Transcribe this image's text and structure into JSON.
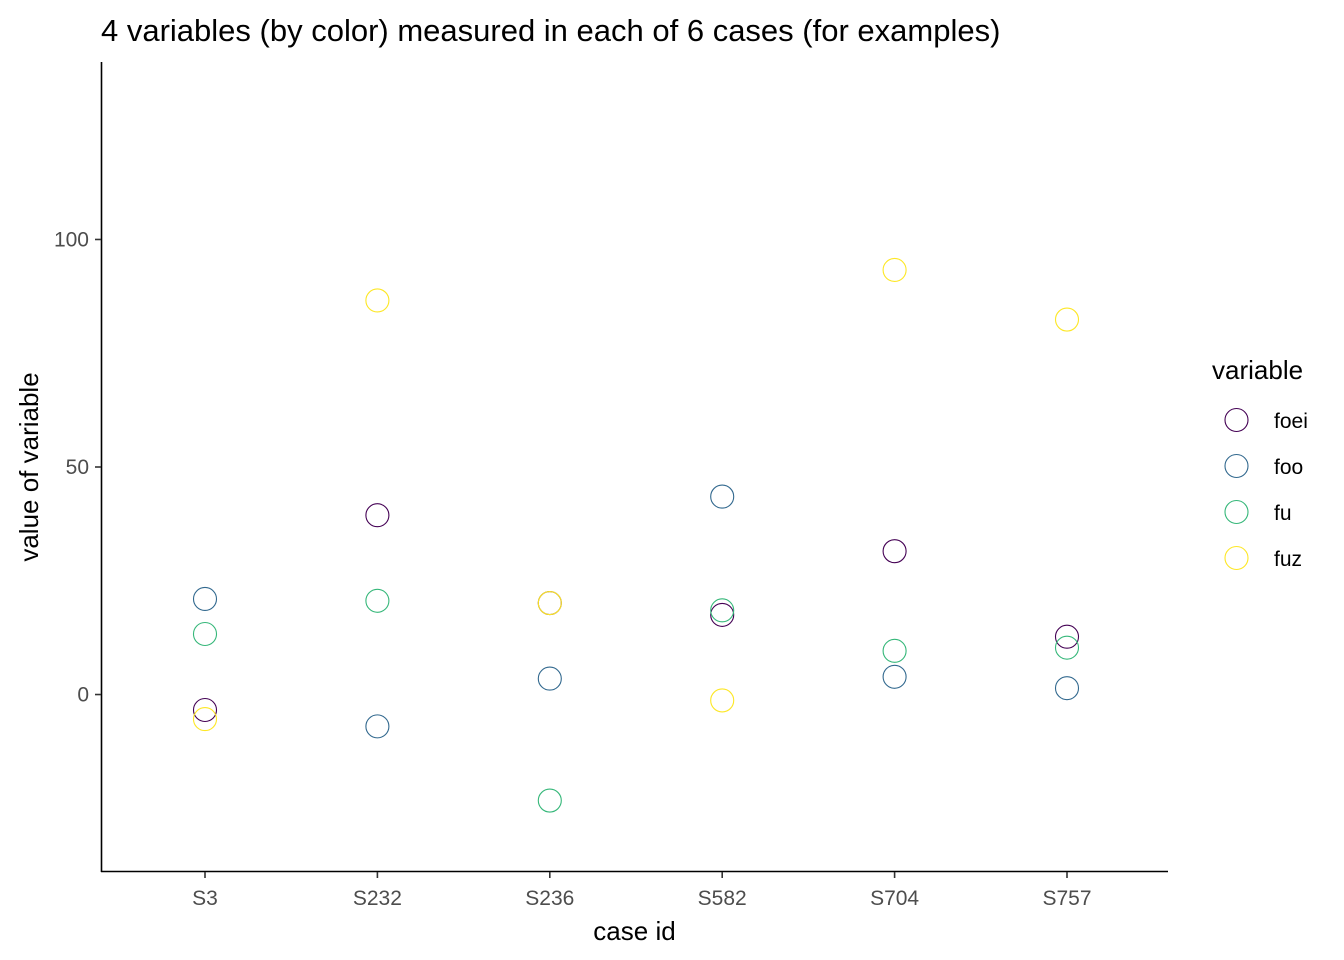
{
  "chart_data": {
    "type": "scatter",
    "title": "4 variables (by color) measured in each of 6 cases (for examples)",
    "xlabel": "case id",
    "ylabel": "value of variable",
    "categories": [
      "S3",
      "S232",
      "S236",
      "S582",
      "S704",
      "S757"
    ],
    "yticks": [
      0,
      50,
      100
    ],
    "ylim": [
      -39,
      139
    ],
    "grid": false,
    "legend": {
      "title": "variable",
      "placement": "right"
    },
    "series": [
      {
        "name": "foei",
        "color": "#440154",
        "values": [
          -3.4,
          39.4,
          20.1,
          17.5,
          31.5,
          12.7
        ]
      },
      {
        "name": "foo",
        "color": "#31688E",
        "values": [
          21.0,
          -7.0,
          3.5,
          43.5,
          3.9,
          1.4
        ]
      },
      {
        "name": "fu",
        "color": "#35B779",
        "values": [
          13.3,
          20.6,
          -23.3,
          18.5,
          9.6,
          10.3
        ]
      },
      {
        "name": "fuz",
        "color": "#FDE725",
        "values": [
          -5.4,
          86.6,
          20.1,
          -1.3,
          93.3,
          82.4
        ]
      }
    ]
  }
}
